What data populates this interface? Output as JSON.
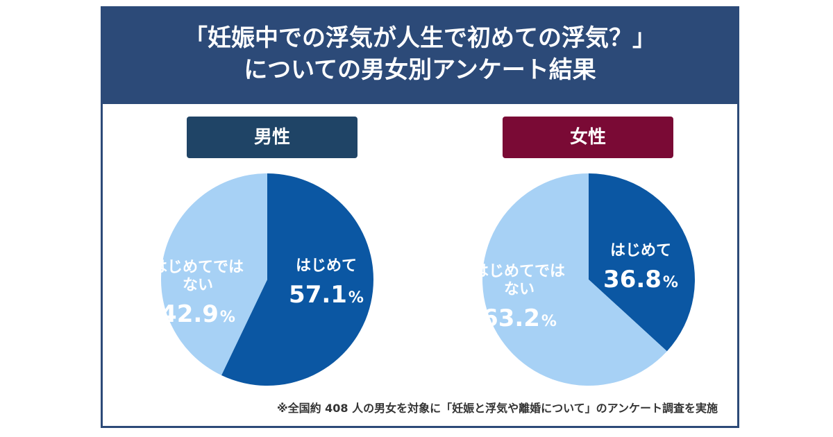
{
  "header": {
    "line1": "「妊娠中での浮気が人生で初めての浮気？」",
    "line2": "についての男女別アンケート結果"
  },
  "colors": {
    "header_bg": "#2c4a78",
    "male_label_bg": "#1f4466",
    "female_label_bg": "#7a0a35",
    "slice_first": "#0b57a3",
    "slice_not_first": "#a7d1f5"
  },
  "chart_data": [
    {
      "type": "pie",
      "title": "男性",
      "slices": [
        {
          "label": "はじめて",
          "value": 57.1,
          "value_text": "57.1",
          "unit": "%"
        },
        {
          "label": "はじめてでは\nない",
          "value": 42.9,
          "value_text": "42.9",
          "unit": "%"
        }
      ]
    },
    {
      "type": "pie",
      "title": "女性",
      "slices": [
        {
          "label": "はじめて",
          "value": 36.8,
          "value_text": "36.8",
          "unit": "%"
        },
        {
          "label": "はじめてでは\nない",
          "value": 63.2,
          "value_text": "63.2",
          "unit": "%"
        }
      ]
    }
  ],
  "footnote": "※全国約 408 人の男女を対象に「妊娠と浮気や離婚について」のアンケート調査を実施"
}
